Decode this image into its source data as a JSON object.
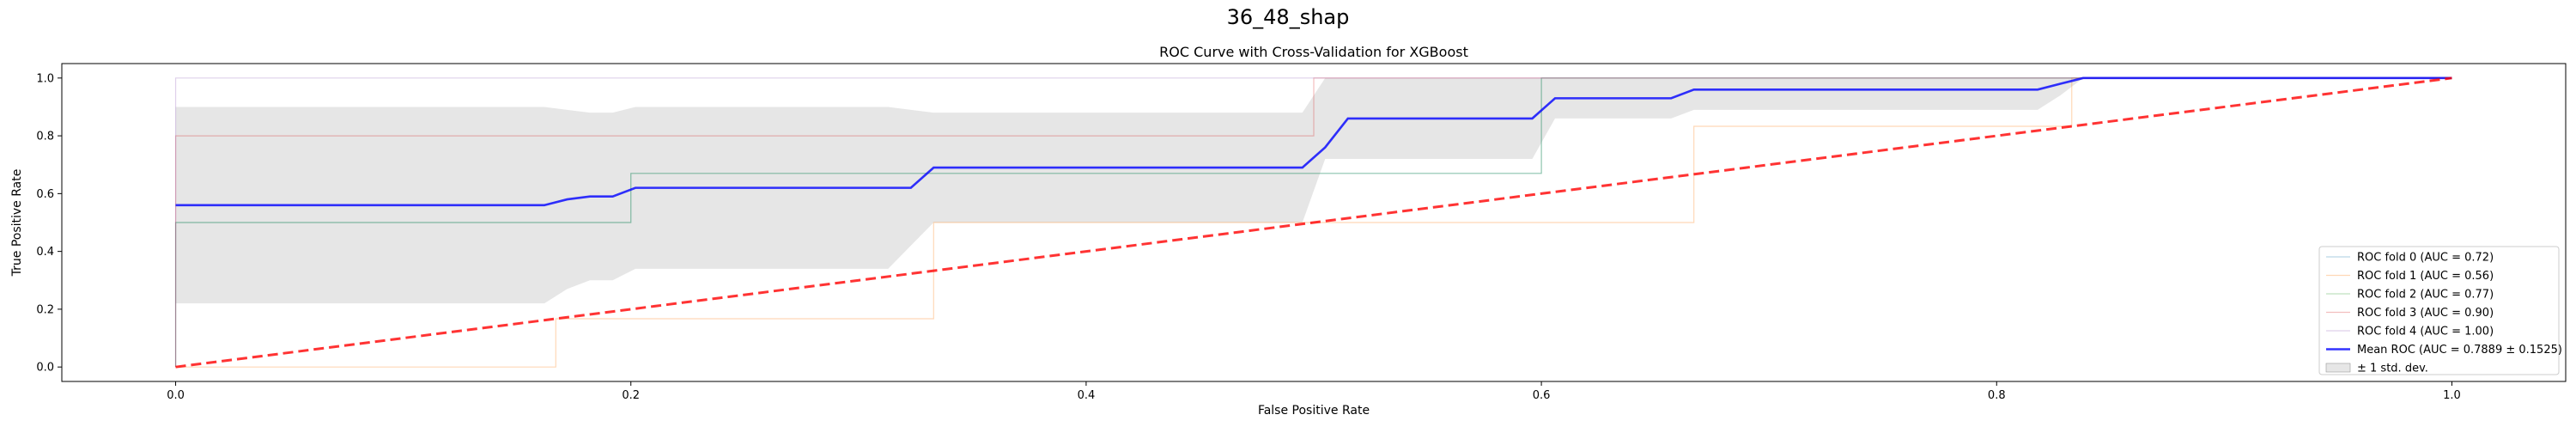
{
  "figure": {
    "suptitle": "36_48_shap"
  },
  "chart_data": {
    "type": "line",
    "title": "ROC Curve with Cross-Validation for XGBoost",
    "xlabel": "False Positive Rate",
    "ylabel": "True Positive Rate",
    "xlim": [
      -0.05,
      1.05
    ],
    "ylim": [
      -0.05,
      1.05
    ],
    "xticks": [
      0.0,
      0.2,
      0.4,
      0.6,
      0.8,
      1.0
    ],
    "yticks": [
      0.0,
      0.2,
      0.4,
      0.6,
      0.8,
      1.0
    ],
    "xtick_labels": [
      "0.0",
      "0.2",
      "0.4",
      "0.6",
      "0.8",
      "1.0"
    ],
    "ytick_labels": [
      "0.0",
      "0.2",
      "0.4",
      "0.6",
      "0.8",
      "1.0"
    ],
    "grid": false,
    "legend_position": "lower-right",
    "series": [
      {
        "name": "ROC fold 0 (AUC = 0.72)",
        "color": "#1f77b4",
        "opacity": 0.3,
        "x": [
          0.0,
          0.0,
          0.0,
          0.2,
          0.2,
          0.6,
          0.6,
          1.0,
          1.0
        ],
        "y": [
          0.0,
          0.2,
          0.5,
          0.5,
          0.67,
          0.67,
          1.0,
          1.0,
          1.0
        ]
      },
      {
        "name": "ROC fold 1 (AUC = 0.56)",
        "color": "#ff7f0e",
        "opacity": 0.3,
        "x": [
          0.0,
          0.0,
          0.167,
          0.167,
          0.333,
          0.333,
          0.667,
          0.667,
          0.833,
          0.833,
          1.0
        ],
        "y": [
          0.0,
          0.0,
          0.0,
          0.167,
          0.167,
          0.5,
          0.5,
          0.833,
          0.833,
          1.0,
          1.0
        ]
      },
      {
        "name": "ROC fold 2 (AUC = 0.77)",
        "color": "#2ca02c",
        "opacity": 0.3,
        "x": [
          0.0,
          0.0,
          0.2,
          0.2,
          0.5,
          0.5,
          0.6,
          0.6,
          1.0
        ],
        "y": [
          0.0,
          0.5,
          0.5,
          0.67,
          0.67,
          0.67,
          0.67,
          1.0,
          1.0
        ]
      },
      {
        "name": "ROC fold 3 (AUC = 0.90)",
        "color": "#d62728",
        "opacity": 0.3,
        "x": [
          0.0,
          0.0,
          0.5,
          0.5,
          1.0
        ],
        "y": [
          0.0,
          0.8,
          0.8,
          1.0,
          1.0
        ]
      },
      {
        "name": "ROC fold 4 (AUC = 1.00)",
        "color": "#9467bd",
        "opacity": 0.3,
        "x": [
          0.0,
          0.0,
          1.0
        ],
        "y": [
          0.0,
          1.0,
          1.0
        ]
      },
      {
        "name": "Mean ROC (AUC = 0.7889 ± 0.1525)",
        "color": "#0000ff",
        "opacity": 0.8,
        "x": [
          0.0,
          0.162,
          0.172,
          0.182,
          0.192,
          0.202,
          0.323,
          0.333,
          0.495,
          0.505,
          0.515,
          0.596,
          0.606,
          0.657,
          0.667,
          0.818,
          0.828,
          0.838,
          1.0
        ],
        "y": [
          0.56,
          0.56,
          0.58,
          0.59,
          0.59,
          0.62,
          0.62,
          0.69,
          0.69,
          0.76,
          0.86,
          0.86,
          0.93,
          0.93,
          0.96,
          0.96,
          0.98,
          1.0,
          1.0
        ]
      }
    ],
    "band": {
      "name": "± 1 std. dev.",
      "color": "#808080",
      "opacity": 0.2,
      "x": [
        0.0,
        0.162,
        0.172,
        0.182,
        0.192,
        0.202,
        0.313,
        0.323,
        0.333,
        0.495,
        0.505,
        0.596,
        0.606,
        0.657,
        0.667,
        0.818,
        0.828,
        0.838,
        1.0
      ],
      "upper": [
        0.9,
        0.9,
        0.89,
        0.88,
        0.88,
        0.9,
        0.9,
        0.89,
        0.88,
        0.88,
        1.0,
        1.0,
        1.0,
        1.0,
        1.0,
        1.0,
        1.0,
        1.0,
        1.0
      ],
      "lower": [
        0.22,
        0.22,
        0.27,
        0.3,
        0.3,
        0.34,
        0.34,
        0.42,
        0.5,
        0.5,
        0.72,
        0.72,
        0.86,
        0.86,
        0.89,
        0.89,
        0.94,
        1.0,
        1.0
      ]
    },
    "chance_line": {
      "color": "#ff0000",
      "dash": "dashed",
      "x": [
        0.0,
        1.0
      ],
      "y": [
        0.0,
        1.0
      ]
    }
  }
}
